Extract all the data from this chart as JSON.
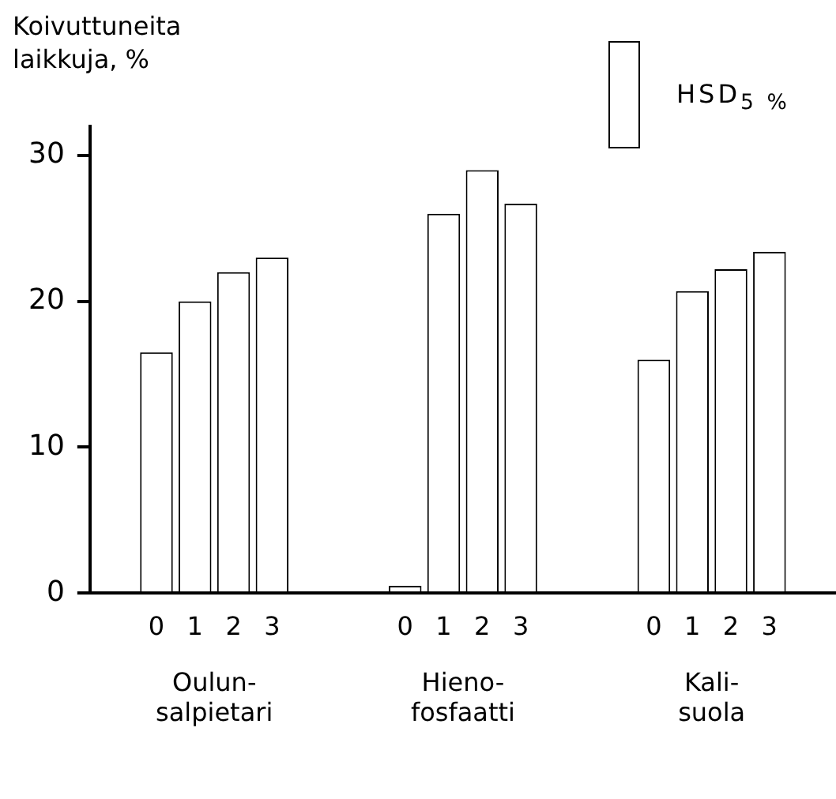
{
  "chart_data": {
    "type": "bar",
    "ylabel": "Koivuttuneita laikkuja, %",
    "categories": [
      "Oulun-\nsalpietari",
      "Hieno-\nfosfaatti",
      "Kali-\nsuola"
    ],
    "series": [
      {
        "name": "0",
        "color": "#ffffff",
        "values": [
          16.5,
          0.5,
          16
        ]
      },
      {
        "name": "1",
        "color": "#ffffff",
        "values": [
          20,
          26,
          20.7
        ]
      },
      {
        "name": "2",
        "color": "#ffffff",
        "values": [
          22,
          29,
          22.2
        ]
      },
      {
        "name": "3",
        "color": "#ffffff",
        "values": [
          23,
          26.7,
          23.4
        ]
      }
    ],
    "ylim": [
      0,
      32
    ],
    "yticks": [
      0,
      10,
      20,
      30
    ],
    "grid": false,
    "annotations": [
      "HSD$_{5 %}$"
    ]
  }
}
